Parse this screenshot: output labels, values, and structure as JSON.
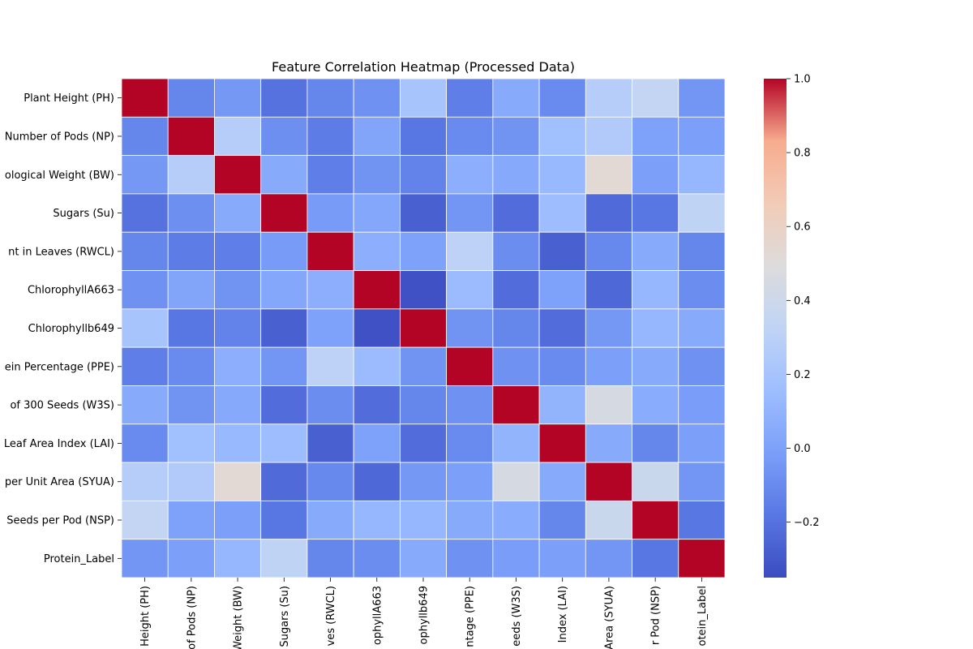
{
  "chart_data": {
    "type": "heatmap",
    "title": "Feature Correlation Heatmap (Processed Data)",
    "colormap": "coolwarm",
    "grid": false,
    "cell_border_color": "#ffffff",
    "rows": [
      "Plant Height (PH)",
      "Number of Pods (NP)",
      "ological Weight (BW)",
      "Sugars (Su)",
      "nt in Leaves (RWCL)",
      "ChlorophyllA663",
      "Chlorophyllb649",
      "ein Percentage (PPE)",
      "of 300 Seeds (W3S)",
      "Leaf Area Index (LAI)",
      "per Unit Area (SYUA)",
      "Seeds per Pod (NSP)",
      "Protein_Label"
    ],
    "columns": [
      "Height (PH)",
      "of Pods (NP)",
      "Weight (BW)",
      "Sugars (Su)",
      "ves (RWCL)",
      "ophyllA663",
      "ophyllb649",
      "ntage (PPE)",
      "eeds (W3S)",
      "Index (LAI)",
      "Area (SYUA)",
      "r Pod (NSP)",
      "otein_Label"
    ],
    "values": [
      [
        1.0,
        -0.12,
        -0.04,
        -0.2,
        -0.12,
        -0.07,
        0.2,
        -0.15,
        0.05,
        -0.1,
        0.27,
        0.34,
        -0.05
      ],
      [
        -0.12,
        1.0,
        0.27,
        -0.08,
        -0.16,
        0.02,
        -0.18,
        -0.1,
        -0.06,
        0.17,
        0.25,
        0.0,
        -0.01
      ],
      [
        -0.04,
        0.27,
        1.0,
        0.05,
        -0.15,
        -0.06,
        -0.13,
        0.07,
        0.04,
        0.13,
        0.53,
        -0.01,
        0.12
      ],
      [
        -0.2,
        -0.08,
        0.05,
        1.0,
        -0.03,
        0.03,
        -0.27,
        -0.05,
        -0.22,
        0.15,
        -0.23,
        -0.18,
        0.32
      ],
      [
        -0.12,
        -0.16,
        -0.15,
        -0.03,
        1.0,
        0.07,
        0.0,
        0.31,
        -0.09,
        -0.27,
        -0.11,
        0.05,
        -0.12
      ],
      [
        -0.07,
        0.02,
        -0.06,
        0.03,
        0.07,
        1.0,
        -0.33,
        0.14,
        -0.22,
        0.0,
        -0.24,
        0.12,
        -0.09
      ],
      [
        0.2,
        -0.18,
        -0.13,
        -0.27,
        0.0,
        -0.33,
        1.0,
        -0.06,
        -0.12,
        -0.22,
        -0.04,
        0.12,
        0.05
      ],
      [
        -0.15,
        -0.1,
        0.07,
        -0.05,
        0.31,
        0.14,
        -0.06,
        1.0,
        -0.07,
        -0.1,
        -0.01,
        0.05,
        -0.07
      ],
      [
        0.05,
        -0.06,
        0.04,
        -0.22,
        -0.09,
        -0.22,
        -0.12,
        -0.07,
        1.0,
        0.1,
        0.45,
        0.06,
        -0.02
      ],
      [
        -0.1,
        0.17,
        0.13,
        0.15,
        -0.27,
        0.0,
        -0.22,
        -0.1,
        0.1,
        1.0,
        0.05,
        -0.12,
        -0.01
      ],
      [
        0.27,
        0.25,
        0.53,
        -0.23,
        -0.11,
        -0.24,
        -0.04,
        -0.01,
        0.45,
        0.05,
        1.0,
        0.38,
        -0.05
      ],
      [
        0.34,
        0.0,
        -0.01,
        -0.18,
        0.05,
        0.12,
        0.12,
        0.05,
        0.06,
        -0.12,
        0.38,
        1.0,
        -0.18
      ],
      [
        -0.05,
        -0.01,
        0.12,
        0.32,
        -0.12,
        -0.09,
        0.05,
        -0.07,
        -0.02,
        -0.01,
        -0.05,
        -0.18,
        1.0
      ]
    ],
    "vmin": -0.35,
    "vmax": 1.0,
    "colorbar": {
      "ticks": [
        -0.2,
        0.0,
        0.2,
        0.4,
        0.6,
        0.8,
        1.0
      ],
      "tick_labels": [
        "−0.2",
        "0.0",
        "0.2",
        "0.4",
        "0.6",
        "0.8",
        "1.0"
      ]
    }
  }
}
